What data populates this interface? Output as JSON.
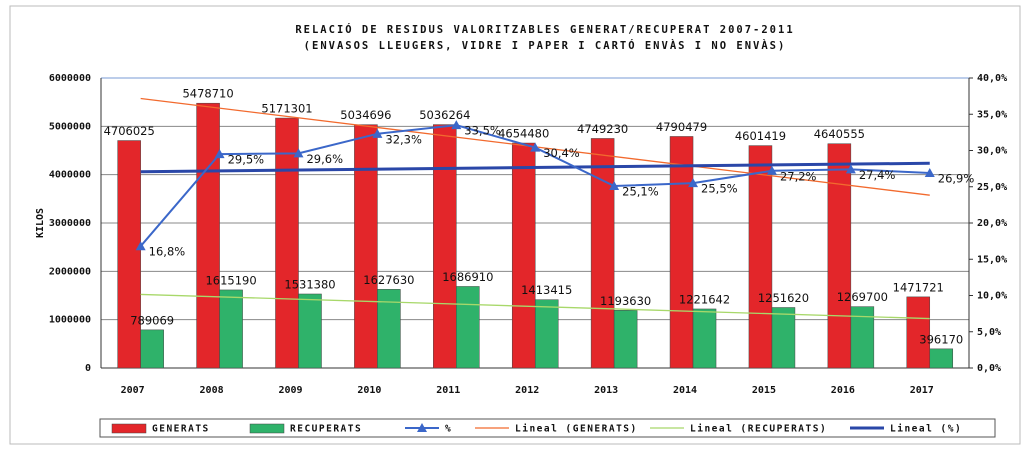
{
  "chart_data": {
    "type": "bar",
    "title": "RELACIÓ DE RESIDUS VALORITZABLES GENERAT/RECUPERAT 2007-2011",
    "subtitle": "(ENVASOS LLEUGERS, VIDRE I PAPER I CARTÓ ENVÀS I NO ENVÀS)",
    "y_label": "KILOS",
    "categories": [
      "2007",
      "2008",
      "2009",
      "2010",
      "2011",
      "2012",
      "2013",
      "2014",
      "2015",
      "2016",
      "2017"
    ],
    "series": [
      {
        "name": "GENERATS",
        "color": "#e3262a",
        "values": [
          4706025,
          5478710,
          5171301,
          5034696,
          5036264,
          4654480,
          4749230,
          4790479,
          4601419,
          4640555,
          1471721
        ]
      },
      {
        "name": "RECUPERATS",
        "color": "#2fb26a",
        "values": [
          789069,
          1615190,
          1531380,
          1627630,
          1686910,
          1413415,
          1193630,
          1221642,
          1251620,
          1269700,
          396170
        ]
      },
      {
        "name": "%",
        "color": "#3b67c9",
        "type": "line",
        "axis": "y2",
        "values": [
          16.8,
          29.5,
          29.6,
          32.3,
          33.5,
          30.4,
          25.1,
          25.5,
          27.2,
          27.4,
          26.9
        ],
        "value_labels": [
          "16,8%",
          "29,5%",
          "29,6%",
          "32,3%",
          "33,5%",
          "30,4%",
          "25,1%",
          "25,5%",
          "27,2%",
          "27,4%",
          "26,9%"
        ]
      }
    ],
    "trendlines": [
      {
        "name": "Lineal (GENERATS)",
        "color": "#f26a2e"
      },
      {
        "name": "Lineal (RECUPERATS)",
        "color": "#a8d86a"
      },
      {
        "name": "Lineal (%)",
        "color": "#2a47a8"
      }
    ],
    "ylim": [
      0,
      6000000
    ],
    "yticks": [
      0,
      1000000,
      2000000,
      3000000,
      4000000,
      5000000,
      6000000
    ],
    "y2lim": [
      0,
      40
    ],
    "y2ticks": [
      {
        "value": 0,
        "label": "0,0%"
      },
      {
        "value": 5,
        "label": "5,0%"
      },
      {
        "value": 10,
        "label": "10,0%"
      },
      {
        "value": 15,
        "label": "15,0%"
      },
      {
        "value": 20,
        "label": "20,0%"
      },
      {
        "value": 25,
        "label": "25,0%"
      },
      {
        "value": 30,
        "label": "30,0%"
      },
      {
        "value": 35,
        "label": "35,0%"
      },
      {
        "value": 40,
        "label": "40,0%"
      }
    ],
    "grid": true
  }
}
